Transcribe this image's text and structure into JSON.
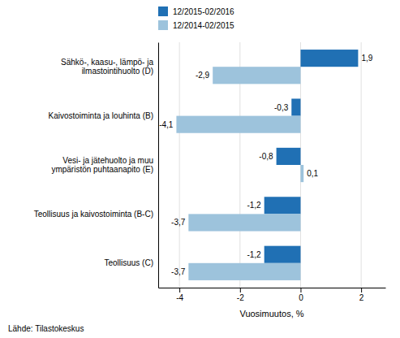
{
  "chart_data": {
    "type": "bar",
    "orientation": "horizontal",
    "categories": [
      "Teollisuus (C)",
      "Teollisuus ja kaivostoiminta (B-C)",
      "Vesi- ja jätehuolto ja muu\nympäristön puhtaanapito (E)",
      "Kaivostoiminta ja louhinta (B)",
      "Sähkö-, kaasu-, lämpö- ja\nilmastointihuolto (D)"
    ],
    "series": [
      {
        "name": "12/2015-02/2016",
        "color": "#2070b4",
        "values": [
          -1.2,
          -1.2,
          -0.8,
          -0.3,
          1.9
        ],
        "value_labels": [
          "-1,2",
          "-1,2",
          "-0,8",
          "-0,3",
          "1,9"
        ]
      },
      {
        "name": "12/2014-02/2015",
        "color": "#9dc3dc",
        "values": [
          -3.7,
          -3.7,
          0.1,
          -4.1,
          -2.9
        ],
        "value_labels": [
          "-3,7",
          "-3,7",
          "0,1",
          "-4,1",
          "-2,9"
        ]
      }
    ],
    "xlabel": "Vuosimuutos, %",
    "xlim": [
      -4.7,
      2.8
    ],
    "xticks": [
      -4,
      -2,
      0,
      2
    ],
    "grid": true,
    "legend": "upper left",
    "data_labels": true,
    "annotations": [
      "Lähde: Tilastokeskus"
    ]
  }
}
